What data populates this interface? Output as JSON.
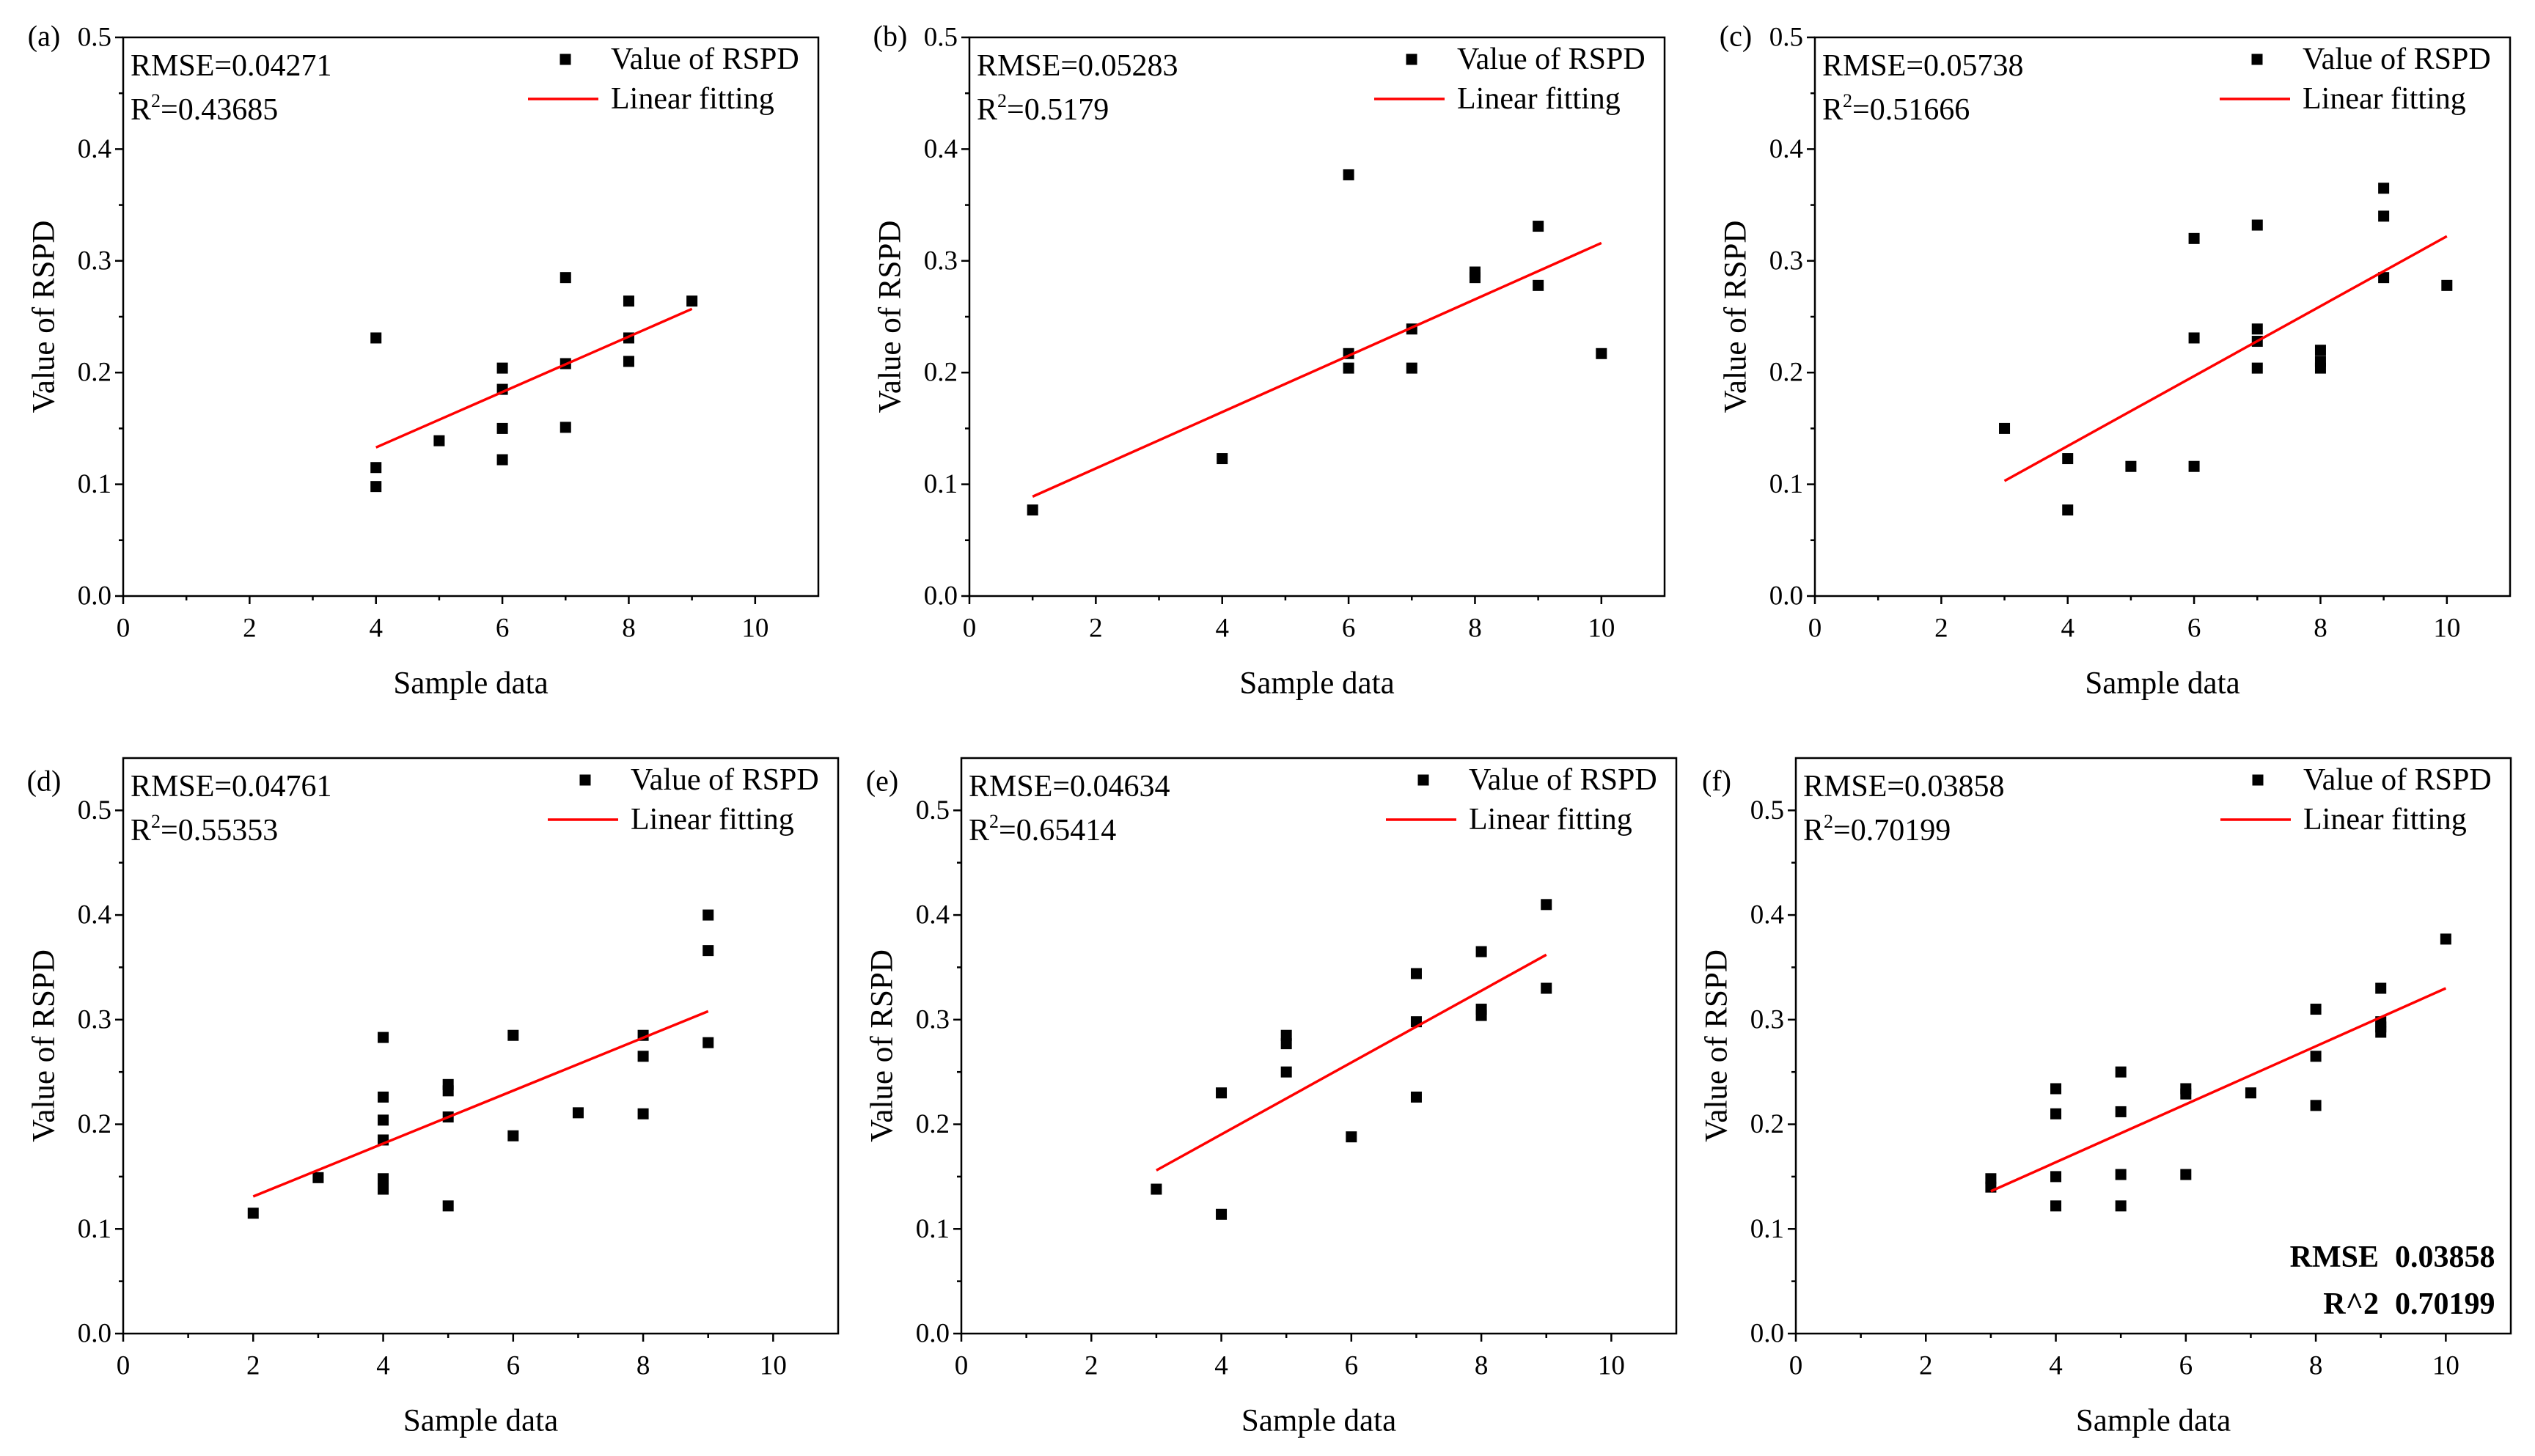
{
  "chart_data": [
    {
      "panel_label": "(a)",
      "type": "scatter",
      "xlabel": "Sample data",
      "ylabel": "Value of RSPD",
      "xlim": [
        0,
        11
      ],
      "ylim": [
        0,
        0.5
      ],
      "xticklabels": [
        "0",
        "2",
        "4",
        "6",
        "8",
        "10"
      ],
      "yticklabels": [
        "0.0",
        "0.1",
        "0.2",
        "0.3",
        "0.4",
        "0.5"
      ],
      "grid": false,
      "legend": {
        "position": "top-right"
      },
      "annotations": {
        "rmse": "RMSE=0.04271",
        "r2_symbol": "R",
        "r2_sup": "2",
        "r2_value": "=0.43685"
      },
      "series": [
        {
          "name": "Value of RSPD",
          "type": "scatter",
          "marker": "square",
          "color": "#000000",
          "points": [
            [
              4,
              0.231
            ],
            [
              4,
              0.115
            ],
            [
              4,
              0.098
            ],
            [
              5,
              0.139
            ],
            [
              6,
              0.204
            ],
            [
              6,
              0.185
            ],
            [
              6,
              0.15
            ],
            [
              6,
              0.122
            ],
            [
              7,
              0.285
            ],
            [
              7,
              0.208
            ],
            [
              7,
              0.151
            ],
            [
              8,
              0.264
            ],
            [
              8,
              0.231
            ],
            [
              8,
              0.21
            ],
            [
              9,
              0.264
            ]
          ]
        },
        {
          "name": "Linear fitting",
          "type": "line",
          "color": "#ff0000",
          "points": [
            [
              4,
              0.133
            ],
            [
              9,
              0.257
            ]
          ]
        }
      ]
    },
    {
      "panel_label": "(b)",
      "type": "scatter",
      "xlabel": "Sample data",
      "ylabel": "Value of RSPD",
      "xlim": [
        0,
        11
      ],
      "ylim": [
        0,
        0.5
      ],
      "xticklabels": [
        "0",
        "2",
        "4",
        "6",
        "8",
        "10"
      ],
      "yticklabels": [
        "0.0",
        "0.1",
        "0.2",
        "0.3",
        "0.4",
        "0.5"
      ],
      "grid": false,
      "legend": {
        "position": "top-right"
      },
      "annotations": {
        "rmse": "RMSE=0.05283",
        "r2_symbol": "R",
        "r2_sup": "2",
        "r2_value": "=0.5179"
      },
      "series": [
        {
          "name": "Value of RSPD",
          "type": "scatter",
          "marker": "square",
          "color": "#000000",
          "points": [
            [
              1,
              0.077
            ],
            [
              4,
              0.123
            ],
            [
              6,
              0.377
            ],
            [
              6,
              0.217
            ],
            [
              6,
              0.204
            ],
            [
              7,
              0.239
            ],
            [
              7,
              0.204
            ],
            [
              8,
              0.29
            ],
            [
              8,
              0.285
            ],
            [
              9,
              0.331
            ],
            [
              9,
              0.278
            ],
            [
              10,
              0.217
            ]
          ]
        },
        {
          "name": "Linear fitting",
          "type": "line",
          "color": "#ff0000",
          "points": [
            [
              1,
              0.089
            ],
            [
              10,
              0.316
            ]
          ]
        }
      ]
    },
    {
      "panel_label": "(c)",
      "type": "scatter",
      "xlabel": "Sample data",
      "ylabel": "Value of RSPD",
      "xlim": [
        0,
        11
      ],
      "ylim": [
        0,
        0.5
      ],
      "xticklabels": [
        "0",
        "2",
        "4",
        "6",
        "8",
        "10"
      ],
      "yticklabels": [
        "0.0",
        "0.1",
        "0.2",
        "0.3",
        "0.4",
        "0.5"
      ],
      "grid": false,
      "legend": {
        "position": "top-right"
      },
      "annotations": {
        "rmse": "RMSE=0.05738",
        "r2_symbol": "R",
        "r2_sup": "2",
        "r2_value": "=0.51666"
      },
      "series": [
        {
          "name": "Value of RSPD",
          "type": "scatter",
          "marker": "square",
          "color": "#000000",
          "points": [
            [
              3,
              0.15
            ],
            [
              4,
              0.123
            ],
            [
              4,
              0.077
            ],
            [
              5,
              0.116
            ],
            [
              6,
              0.32
            ],
            [
              6,
              0.231
            ],
            [
              6,
              0.116
            ],
            [
              7,
              0.332
            ],
            [
              7,
              0.239
            ],
            [
              7,
              0.228
            ],
            [
              7,
              0.204
            ],
            [
              8,
              0.22
            ],
            [
              8,
              0.21
            ],
            [
              8,
              0.204
            ],
            [
              9,
              0.365
            ],
            [
              9,
              0.34
            ],
            [
              9,
              0.285
            ],
            [
              10,
              0.278
            ]
          ]
        },
        {
          "name": "Linear fitting",
          "type": "line",
          "color": "#ff0000",
          "points": [
            [
              3,
              0.103
            ],
            [
              10,
              0.322
            ]
          ]
        }
      ]
    },
    {
      "panel_label": "(d)",
      "type": "scatter",
      "xlabel": "Sample data",
      "ylabel": "Value of RSPD",
      "xlim": [
        0,
        11
      ],
      "ylim": [
        0,
        0.55
      ],
      "xticklabels": [
        "0",
        "2",
        "4",
        "6",
        "8",
        "10"
      ],
      "yticklabels": [
        "0.0",
        "0.1",
        "0.2",
        "0.3",
        "0.4",
        "0.5"
      ],
      "grid": false,
      "legend": {
        "position": "top-right"
      },
      "annotations": {
        "rmse": "RMSE=0.04761",
        "r2_symbol": "R",
        "r2_sup": "2",
        "r2_value": "=0.55353"
      },
      "series": [
        {
          "name": "Value of RSPD",
          "type": "scatter",
          "marker": "square",
          "color": "#000000",
          "points": [
            [
              2,
              0.115
            ],
            [
              3,
              0.149
            ],
            [
              4,
              0.283
            ],
            [
              4,
              0.226
            ],
            [
              4,
              0.204
            ],
            [
              4,
              0.185
            ],
            [
              4,
              0.148
            ],
            [
              4,
              0.138
            ],
            [
              5,
              0.238
            ],
            [
              5,
              0.232
            ],
            [
              5,
              0.207
            ],
            [
              5,
              0.122
            ],
            [
              6,
              0.285
            ],
            [
              6,
              0.189
            ],
            [
              7,
              0.211
            ],
            [
              8,
              0.285
            ],
            [
              8,
              0.265
            ],
            [
              8,
              0.21
            ],
            [
              9,
              0.4
            ],
            [
              9,
              0.366
            ],
            [
              9,
              0.278
            ]
          ]
        },
        {
          "name": "Linear fitting",
          "type": "line",
          "color": "#ff0000",
          "points": [
            [
              2,
              0.131
            ],
            [
              9,
              0.308
            ]
          ]
        }
      ]
    },
    {
      "panel_label": "(e)",
      "type": "scatter",
      "xlabel": "Sample data",
      "ylabel": "Value of RSPD",
      "xlim": [
        0,
        11
      ],
      "ylim": [
        0,
        0.55
      ],
      "xticklabels": [
        "0",
        "2",
        "4",
        "6",
        "8",
        "10"
      ],
      "yticklabels": [
        "0.0",
        "0.1",
        "0.2",
        "0.3",
        "0.4",
        "0.5"
      ],
      "grid": false,
      "legend": {
        "position": "top-right"
      },
      "annotations": {
        "rmse": "RMSE=0.04634",
        "r2_symbol": "R",
        "r2_sup": "2",
        "r2_value": "=0.65414"
      },
      "series": [
        {
          "name": "Value of RSPD",
          "type": "scatter",
          "marker": "square",
          "color": "#000000",
          "points": [
            [
              3,
              0.138
            ],
            [
              4,
              0.23
            ],
            [
              4,
              0.114
            ],
            [
              5,
              0.285
            ],
            [
              5,
              0.277
            ],
            [
              5,
              0.25
            ],
            [
              6,
              0.188
            ],
            [
              7,
              0.344
            ],
            [
              7,
              0.298
            ],
            [
              7,
              0.226
            ],
            [
              8,
              0.365
            ],
            [
              8,
              0.31
            ],
            [
              8,
              0.304
            ],
            [
              9,
              0.41
            ],
            [
              9,
              0.33
            ]
          ]
        },
        {
          "name": "Linear fitting",
          "type": "line",
          "color": "#ff0000",
          "points": [
            [
              3,
              0.156
            ],
            [
              9,
              0.362
            ]
          ]
        }
      ]
    },
    {
      "panel_label": "(f)",
      "type": "scatter",
      "xlabel": "Sample data",
      "ylabel": "Value of RSPD",
      "xlim": [
        0,
        11
      ],
      "ylim": [
        0,
        0.55
      ],
      "xticklabels": [
        "0",
        "2",
        "4",
        "6",
        "8",
        "10"
      ],
      "yticklabels": [
        "0.0",
        "0.1",
        "0.2",
        "0.3",
        "0.4",
        "0.5"
      ],
      "grid": false,
      "legend": {
        "position": "top-right"
      },
      "annotations": {
        "rmse": "RMSE=0.03858",
        "r2_symbol": "R",
        "r2_sup": "2",
        "r2_value": "=0.70199"
      },
      "stats_table": {
        "rmse_label": "RMSE",
        "rmse_value": "0.03858",
        "r2_label": "R^2",
        "r2_value": "0.70199"
      },
      "series": [
        {
          "name": "Value of RSPD",
          "type": "scatter",
          "marker": "square",
          "color": "#000000",
          "points": [
            [
              3,
              0.148
            ],
            [
              3,
              0.14
            ],
            [
              4,
              0.234
            ],
            [
              4,
              0.21
            ],
            [
              4,
              0.15
            ],
            [
              4,
              0.122
            ],
            [
              5,
              0.25
            ],
            [
              5,
              0.212
            ],
            [
              5,
              0.152
            ],
            [
              5,
              0.122
            ],
            [
              6,
              0.234
            ],
            [
              6,
              0.229
            ],
            [
              6,
              0.152
            ],
            [
              7,
              0.23
            ],
            [
              8,
              0.31
            ],
            [
              8,
              0.265
            ],
            [
              8,
              0.218
            ],
            [
              9,
              0.33
            ],
            [
              9,
              0.298
            ],
            [
              9,
              0.293
            ],
            [
              9,
              0.288
            ],
            [
              10,
              0.377
            ]
          ]
        },
        {
          "name": "Linear fitting",
          "type": "line",
          "color": "#ff0000",
          "points": [
            [
              3,
              0.136
            ],
            [
              10,
              0.33
            ]
          ]
        }
      ]
    }
  ]
}
